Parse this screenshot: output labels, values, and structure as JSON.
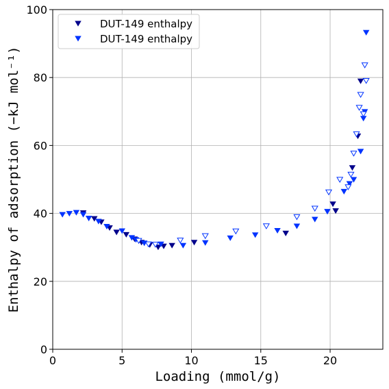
{
  "chart_data": {
    "type": "scatter",
    "title": "",
    "xlabel": "Loading (mmol/g)",
    "ylabel": "Enthalpy of adsorption (−kJ mol⁻¹)",
    "xlim": [
      0,
      23.8
    ],
    "ylim": [
      0,
      100
    ],
    "xticks": [
      "0",
      "5",
      "10",
      "15",
      "20"
    ],
    "yticks": [
      "0",
      "20",
      "40",
      "60",
      "80",
      "100"
    ],
    "grid": true,
    "legend_position": "top-left",
    "series": [
      {
        "name": "DUT-149 enthalpy",
        "color": "#00008b",
        "marker": "triangle-down-filled",
        "points": [
          [
            2.2,
            40.2
          ],
          [
            3.0,
            38.5
          ],
          [
            3.5,
            37.5
          ],
          [
            4.1,
            35.8
          ],
          [
            4.6,
            34.5
          ],
          [
            5.3,
            33.8
          ],
          [
            5.9,
            32.5
          ],
          [
            6.4,
            31.5
          ],
          [
            7.0,
            30.8
          ],
          [
            7.6,
            30.1
          ],
          [
            8.0,
            30.4
          ],
          [
            8.6,
            30.6
          ],
          [
            10.2,
            31.5
          ],
          [
            16.8,
            34.2
          ],
          [
            20.2,
            42.8
          ],
          [
            20.4,
            40.8
          ],
          [
            21.6,
            53.5
          ],
          [
            22.0,
            62.8
          ],
          [
            22.2,
            79.0
          ]
        ]
      },
      {
        "name": "DUT-149 enthalpy",
        "color": "#0033ff",
        "marker": "triangle-down-filled",
        "points": [
          [
            0.7,
            39.7
          ],
          [
            1.2,
            40.0
          ],
          [
            1.7,
            40.3
          ],
          [
            2.2,
            39.7
          ],
          [
            2.6,
            38.6
          ],
          [
            3.3,
            37.7
          ],
          [
            3.9,
            36.2
          ],
          [
            5.0,
            34.9
          ],
          [
            5.7,
            32.9
          ],
          [
            6.0,
            32.3
          ],
          [
            6.6,
            31.3
          ],
          [
            7.8,
            31.0
          ],
          [
            9.4,
            30.6
          ],
          [
            11.0,
            31.4
          ],
          [
            12.8,
            32.8
          ],
          [
            14.6,
            33.7
          ],
          [
            16.2,
            35.0
          ],
          [
            17.6,
            36.3
          ],
          [
            18.9,
            38.3
          ],
          [
            19.8,
            40.6
          ],
          [
            21.0,
            46.5
          ],
          [
            21.4,
            48.8
          ],
          [
            21.7,
            50.0
          ],
          [
            22.2,
            58.3
          ],
          [
            22.4,
            68.0
          ],
          [
            22.5,
            70.0
          ],
          [
            22.6,
            93.3
          ]
        ]
      },
      {
        "name": "",
        "color": "#0033ff",
        "marker": "triangle-down-hollow",
        "points": [
          [
            6.2,
            32.0
          ],
          [
            6.9,
            31.0
          ],
          [
            7.4,
            30.9
          ],
          [
            9.2,
            32.1
          ],
          [
            11.0,
            33.4
          ],
          [
            13.2,
            34.8
          ],
          [
            15.4,
            36.3
          ],
          [
            17.6,
            39.0
          ],
          [
            18.9,
            41.5
          ],
          [
            19.9,
            46.3
          ],
          [
            20.7,
            50.0
          ],
          [
            21.3,
            47.8
          ],
          [
            21.5,
            51.5
          ],
          [
            21.7,
            57.7
          ],
          [
            21.9,
            63.4
          ],
          [
            22.1,
            71.2
          ],
          [
            22.2,
            75.0
          ],
          [
            22.4,
            69.3
          ],
          [
            22.5,
            83.7
          ],
          [
            22.6,
            79.1
          ]
        ]
      }
    ]
  }
}
